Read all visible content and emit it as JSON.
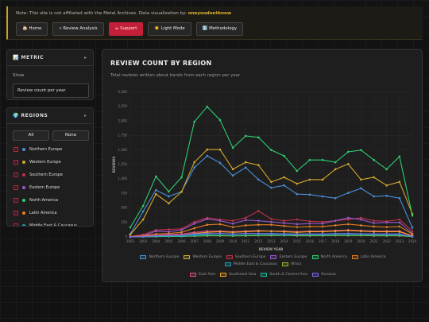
{
  "banner": {
    "note": "Note: This site is not affiliated with the Metal Archives. Data visualization by:",
    "author": "oneyoudontknow",
    "buttons": [
      "🏠 Home",
      "« Review Analysis",
      "☕ Support",
      "☀️ Light Mode",
      "ℹ️ Methodology"
    ]
  },
  "metric": {
    "title": "📊 METRIC",
    "toggle": "▸",
    "show_label": "Show",
    "select": "Review count per year"
  },
  "regions": {
    "title": "🌍 REGIONS",
    "toggle": "▸",
    "all": "All",
    "none": "None"
  },
  "chart_data": {
    "type": "line",
    "title": "REVIEW COUNT BY REGION",
    "subtitle": "Total reviews written about bands from each region per year",
    "x_label": "REVIEW YEAR",
    "y_label": "REVIEWS",
    "grid": true,
    "x": [
      2002,
      2003,
      2004,
      2005,
      2006,
      2007,
      2008,
      2009,
      2010,
      2011,
      2012,
      2013,
      2014,
      2015,
      2016,
      2017,
      2018,
      2019,
      2020,
      2021,
      2022,
      2023,
      2024
    ],
    "xlim": [
      2002,
      2024
    ],
    "ylim": [
      0,
      2500
    ],
    "yticks": [
      0,
      250,
      500,
      750,
      {
        "value": 1000,
        "label": "1,000"
      },
      {
        "value": 1250,
        "label": "1,250"
      },
      {
        "value": 1500,
        "label": "1,500"
      },
      {
        "value": 1750,
        "label": "1,750"
      },
      {
        "value": 2000,
        "label": "2,000"
      },
      {
        "value": 2250,
        "label": "2,250"
      },
      {
        "value": 2500,
        "label": "2,500"
      }
    ],
    "series": [
      {
        "name": "Northern Europe",
        "color": "#4a90d9",
        "values": [
          50,
          440,
          810,
          700,
          780,
          1200,
          1400,
          1280,
          1060,
          1200,
          990,
          850,
          890,
          740,
          730,
          700,
          670,
          760,
          840,
          700,
          710,
          670,
          160
        ]
      },
      {
        "name": "Western Europe",
        "color": "#d4a82a",
        "values": [
          40,
          300,
          740,
          580,
          780,
          1290,
          1510,
          1510,
          1170,
          1290,
          1240,
          950,
          1030,
          920,
          990,
          990,
          1170,
          1260,
          990,
          1030,
          890,
          950,
          400
        ]
      },
      {
        "name": "Southern Europe",
        "color": "#c0304a",
        "values": [
          10,
          40,
          120,
          130,
          140,
          260,
          330,
          300,
          280,
          330,
          450,
          310,
          280,
          300,
          270,
          260,
          280,
          300,
          330,
          280,
          270,
          300,
          100
        ]
      },
      {
        "name": "Eastern Europe",
        "color": "#9b59d0",
        "values": [
          5,
          20,
          100,
          90,
          120,
          230,
          310,
          280,
          230,
          290,
          280,
          260,
          240,
          220,
          230,
          230,
          280,
          330,
          300,
          240,
          250,
          250,
          60
        ]
      },
      {
        "name": "North America",
        "color": "#2ecc71",
        "values": [
          165,
          535,
          1045,
          783,
          1030,
          1990,
          2250,
          2020,
          1540,
          1745,
          1720,
          1500,
          1400,
          1140,
          1330,
          1330,
          1290,
          1470,
          1500,
          1330,
          1170,
          1390,
          370
        ]
      },
      {
        "name": "Latin America",
        "color": "#e67e22",
        "values": [
          5,
          20,
          50,
          60,
          80,
          150,
          210,
          220,
          170,
          200,
          210,
          210,
          190,
          170,
          180,
          180,
          200,
          220,
          200,
          180,
          170,
          180,
          50
        ]
      },
      {
        "name": "Middle East & Caucasus",
        "color": "#17a2b8",
        "values": [
          0,
          5,
          15,
          20,
          25,
          40,
          50,
          60,
          50,
          60,
          60,
          60,
          55,
          50,
          50,
          50,
          60,
          60,
          55,
          50,
          50,
          50,
          10
        ]
      },
      {
        "name": "Africa",
        "color": "#8fb82a",
        "values": [
          0,
          2,
          5,
          8,
          10,
          15,
          20,
          20,
          18,
          20,
          25,
          25,
          25,
          20,
          20,
          22,
          25,
          25,
          25,
          20,
          20,
          20,
          5
        ]
      },
      {
        "name": "East Asia",
        "color": "#e0507a",
        "values": [
          0,
          10,
          30,
          40,
          50,
          80,
          100,
          100,
          90,
          100,
          110,
          100,
          100,
          90,
          100,
          100,
          110,
          120,
          110,
          100,
          100,
          100,
          20
        ]
      },
      {
        "name": "Southeast Asia",
        "color": "#f0a030",
        "values": [
          0,
          5,
          20,
          25,
          30,
          60,
          80,
          90,
          80,
          90,
          100,
          100,
          90,
          80,
          90,
          90,
          100,
          110,
          100,
          90,
          90,
          90,
          20
        ]
      },
      {
        "name": "South & Central Asia",
        "color": "#1abc9c",
        "values": [
          0,
          2,
          5,
          10,
          10,
          20,
          30,
          30,
          25,
          30,
          35,
          35,
          30,
          30,
          30,
          30,
          35,
          35,
          35,
          30,
          30,
          30,
          5
        ]
      },
      {
        "name": "Oceania",
        "color": "#7b68ee",
        "values": [
          0,
          5,
          20,
          25,
          30,
          50,
          60,
          60,
          50,
          60,
          60,
          55,
          50,
          45,
          50,
          50,
          55,
          60,
          55,
          50,
          50,
          50,
          10
        ]
      }
    ]
  }
}
